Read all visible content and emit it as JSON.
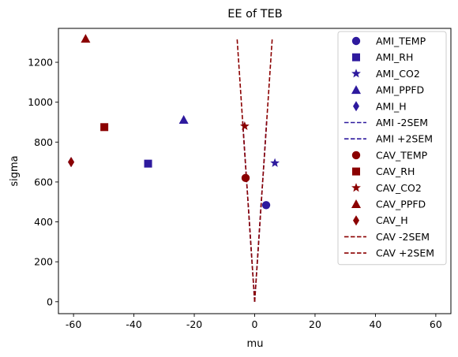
{
  "chart_data": {
    "type": "scatter",
    "title": "EE of TEB",
    "xlabel": "mu",
    "ylabel": "sigma",
    "xlim": [
      -65,
      65
    ],
    "ylim": [
      -60,
      1370
    ],
    "xticks": [
      -60,
      -40,
      -20,
      0,
      20,
      40,
      60
    ],
    "yticks": [
      0,
      200,
      400,
      600,
      800,
      1000,
      1200
    ],
    "grid": false,
    "legend_position": "upper-right",
    "colors": {
      "AMI": "#2e1a9e",
      "CAV": "#8b0000"
    },
    "series": [
      {
        "name": "AMI_TEMP",
        "group": "AMI",
        "marker": "circle",
        "x": 3.8,
        "y": 484
      },
      {
        "name": "AMI_RH",
        "group": "AMI",
        "marker": "square",
        "x": -35.3,
        "y": 692
      },
      {
        "name": "AMI_CO2",
        "group": "AMI",
        "marker": "star",
        "x": 6.7,
        "y": 695
      },
      {
        "name": "AMI_PPFD",
        "group": "AMI",
        "marker": "triangle",
        "x": -23.5,
        "y": 912
      },
      {
        "name": "AMI_H",
        "group": "AMI",
        "marker": "diamond",
        "x": -60.8,
        "y": 700
      },
      {
        "name": "AMI -2SEM",
        "group": "AMI",
        "marker": "line",
        "line": [
          [
            0,
            0
          ],
          [
            -4.0,
            910
          ]
        ]
      },
      {
        "name": "AMI +2SEM",
        "group": "AMI",
        "marker": "line",
        "line": [
          [
            0,
            0
          ],
          [
            4.0,
            910
          ]
        ]
      },
      {
        "name": "CAV_TEMP",
        "group": "CAV",
        "marker": "circle",
        "x": -3.0,
        "y": 620
      },
      {
        "name": "CAV_RH",
        "group": "CAV",
        "marker": "square",
        "x": -49.8,
        "y": 875
      },
      {
        "name": "CAV_CO2",
        "group": "CAV",
        "marker": "star",
        "x": -3.3,
        "y": 880
      },
      {
        "name": "CAV_PPFD",
        "group": "CAV",
        "marker": "triangle",
        "x": -56.0,
        "y": 1318
      },
      {
        "name": "CAV_H",
        "group": "CAV",
        "marker": "diamond",
        "x": -60.8,
        "y": 700
      },
      {
        "name": "CAV -2SEM",
        "group": "CAV",
        "marker": "line",
        "line": [
          [
            0,
            0
          ],
          [
            -5.8,
            1315
          ]
        ]
      },
      {
        "name": "CAV +2SEM",
        "group": "CAV",
        "marker": "line",
        "line": [
          [
            0,
            0
          ],
          [
            5.8,
            1315
          ]
        ]
      }
    ]
  }
}
